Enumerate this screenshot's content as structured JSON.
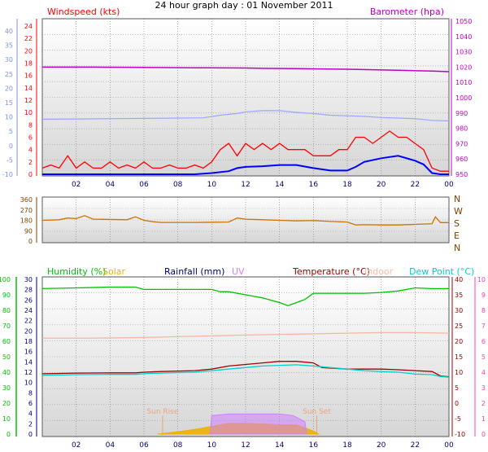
{
  "chart_data": [
    {
      "type": "line",
      "title": "24 hour graph day : 01 November 2011",
      "labels": {
        "windspeed": "Windspeed (kts)",
        "barometer": "Barometer (hpa)"
      },
      "colors": {
        "windspeed": "#ff0000",
        "gust": "#0000ff",
        "barometer": "#c000c0",
        "temperature_scaled": "#9aa6ff"
      },
      "left_axis_outer": {
        "ticks": [
          "40",
          "35",
          "30",
          "25",
          "20",
          "15",
          "10",
          "5",
          "0",
          "-5",
          "-10"
        ]
      },
      "left_axis_inner": {
        "ticks": [
          "24",
          "22",
          "20",
          "18",
          "16",
          "14",
          "12",
          "10",
          "8",
          "6",
          "4",
          "2",
          "0"
        ],
        "ylim": [
          0,
          24
        ]
      },
      "right_axis": {
        "ticks": [
          "1050",
          "1040",
          "1030",
          "1020",
          "1010",
          "1000",
          "990",
          "980",
          "970",
          "960",
          "950"
        ],
        "ylim": [
          950,
          1050
        ]
      },
      "x_ticks": [
        "02",
        "04",
        "06",
        "08",
        "10",
        "12",
        "14",
        "16",
        "18",
        "20",
        "22",
        "00"
      ],
      "series": [
        {
          "key": "barometer",
          "axis": "right",
          "x": [
            0,
            3,
            6,
            9,
            12,
            13,
            15,
            18,
            21,
            23,
            24
          ],
          "values": [
            1020,
            1020,
            1019.8,
            1019.6,
            1019.4,
            1019.2,
            1019,
            1018.6,
            1018,
            1017.4,
            1017
          ]
        },
        {
          "key": "temperature_scaled",
          "axis": "left_outer",
          "x": [
            0,
            2,
            4,
            6,
            8,
            9.5,
            10.5,
            11.5,
            12,
            13,
            14,
            15,
            16,
            17,
            18,
            19,
            20,
            21,
            22,
            23,
            24
          ],
          "values": [
            9.2,
            9.3,
            9.4,
            9.5,
            9.6,
            9.7,
            10.6,
            11.2,
            11.8,
            12.2,
            12.2,
            11.6,
            11.2,
            10.6,
            10.4,
            10.2,
            9.8,
            9.6,
            9.4,
            8.8,
            8.6
          ]
        },
        {
          "key": "windspeed",
          "axis": "left_inner",
          "x": [
            0,
            0.5,
            1,
            1.5,
            2,
            2.5,
            3,
            3.5,
            4,
            4.5,
            5,
            5.5,
            6,
            6.5,
            7,
            7.5,
            8,
            8.5,
            9,
            9.5,
            10,
            10.5,
            11,
            11.5,
            12,
            12.5,
            13,
            13.5,
            14,
            14.5,
            15,
            15.5,
            16,
            16.5,
            17,
            17.5,
            18,
            18.5,
            19,
            19.5,
            20,
            20.5,
            21,
            21.5,
            22,
            22.5,
            23,
            23.5,
            24
          ],
          "values": [
            1,
            1.5,
            1,
            3,
            1,
            2,
            1,
            1,
            2,
            1,
            1.5,
            1,
            2,
            1,
            1,
            1.5,
            1,
            1,
            1.5,
            1,
            2,
            4,
            5,
            3,
            5,
            4,
            5,
            4,
            5,
            4,
            4,
            4,
            3,
            3,
            3,
            4,
            4,
            6,
            6,
            5,
            6,
            7,
            6,
            6,
            5,
            4,
            1,
            0.5,
            0.5
          ]
        },
        {
          "key": "gust",
          "axis": "left_inner",
          "x": [
            0,
            1,
            2,
            3,
            4,
            5,
            6,
            7,
            8,
            9,
            10,
            11,
            11.5,
            12,
            13,
            14,
            15,
            16,
            17,
            18,
            18.5,
            19,
            20,
            21,
            22,
            22.5,
            23,
            23.5,
            24
          ],
          "values": [
            0,
            0,
            0,
            0,
            0,
            0,
            0,
            0,
            0,
            0,
            0.2,
            0.5,
            1,
            1.2,
            1.3,
            1.5,
            1.5,
            1,
            0.6,
            0.6,
            1.2,
            2,
            2.6,
            3,
            2.2,
            1.6,
            0.2,
            0,
            0
          ]
        }
      ]
    },
    {
      "type": "line",
      "left_axis": {
        "ticks": [
          "360",
          "270",
          "180",
          "90",
          "0"
        ],
        "ylim": [
          0,
          360
        ]
      },
      "right_labels": [
        "N",
        "W",
        "S",
        "E",
        "N"
      ],
      "colors": {
        "direction": "#d07000"
      },
      "series": [
        {
          "key": "direction",
          "x": [
            0,
            1,
            1.5,
            2,
            2.5,
            3,
            5,
            5.5,
            6,
            6.5,
            7,
            9,
            11,
            11.5,
            12,
            13,
            14,
            15,
            16,
            17,
            18,
            18.5,
            19,
            20,
            21,
            22,
            23,
            23.2,
            23.5,
            24
          ],
          "values": [
            180,
            185,
            200,
            195,
            220,
            190,
            185,
            210,
            180,
            168,
            162,
            162,
            165,
            200,
            190,
            185,
            180,
            175,
            178,
            170,
            165,
            140,
            142,
            140,
            140,
            145,
            150,
            210,
            160,
            160
          ]
        }
      ]
    },
    {
      "type": "line",
      "labels": {
        "humidity": "Humidity (%)",
        "solar": "Solar",
        "rainfall": "Rainfall (mm)",
        "uv": "UV",
        "temperature": "Temperature (°C)",
        "indoor": "Indoor",
        "dewpoint": "Dew Point (°C)"
      },
      "colors": {
        "humidity": "#00c000",
        "solar": "#f0b000",
        "rainfall": "#000080",
        "uv": "#d080ff",
        "temperature": "#a00000",
        "indoor": "#f4b8a0",
        "dewpoint": "#00d0d0",
        "uv_axis": "#ff40a0"
      },
      "annotations": {
        "sunrise": "Sun Rise",
        "sunset": "Sun Set",
        "sunrise_x": 7.1,
        "sunset_x": 16.2
      },
      "axis_humidity": {
        "ticks": [
          "100",
          "90",
          "80",
          "70",
          "60",
          "50",
          "40",
          "30",
          "20",
          "10",
          "0"
        ],
        "ylim": [
          0,
          100
        ]
      },
      "axis_rain": {
        "ticks": [
          "30",
          "28",
          "26",
          "24",
          "22",
          "20",
          "18",
          "16",
          "14",
          "12",
          "10",
          "8",
          "6",
          "4",
          "2",
          "0"
        ],
        "ylim": [
          0,
          30
        ]
      },
      "axis_temperature": {
        "ticks": [
          "40",
          "35",
          "30",
          "25",
          "20",
          "15",
          "10",
          "5",
          "0",
          "-5",
          "-10"
        ],
        "ylim": [
          -10,
          40
        ]
      },
      "axis_uv": {
        "ticks": [
          "10",
          "9",
          "8",
          "7",
          "6",
          "5",
          "4",
          "3",
          "2",
          "1",
          "0"
        ],
        "ylim": [
          0,
          10
        ]
      },
      "x_ticks": [
        "02",
        "04",
        "06",
        "08",
        "10",
        "12",
        "14",
        "16",
        "18",
        "20",
        "22",
        "00"
      ],
      "series": [
        {
          "key": "humidity",
          "axis": "humidity",
          "x": [
            0,
            2,
            4,
            5.5,
            6,
            8,
            10,
            10.5,
            11,
            11.5,
            12,
            12.5,
            13,
            13.5,
            14,
            14.5,
            15,
            15.5,
            16,
            17,
            18,
            19,
            20,
            21,
            21.5,
            22,
            23,
            24
          ],
          "values": [
            94,
            94.5,
            95,
            95,
            93.5,
            93.5,
            93.5,
            92,
            92,
            91,
            90,
            89,
            88,
            86.5,
            85,
            83,
            85,
            87,
            91,
            91,
            91,
            91,
            91.5,
            92.5,
            93.5,
            94.5,
            94,
            94
          ]
        },
        {
          "key": "indoor",
          "axis": "temperature",
          "x": [
            0,
            3,
            6,
            9,
            12,
            14,
            16,
            18,
            20,
            22,
            24
          ],
          "values": [
            21,
            21,
            21.2,
            21.6,
            22,
            22.2,
            22.4,
            22.6,
            22.8,
            22.8,
            22.6
          ]
        },
        {
          "key": "temperature",
          "axis": "temperature",
          "x": [
            0,
            2,
            4,
            5.5,
            6,
            7,
            9,
            10,
            11,
            12,
            13,
            14,
            15,
            16,
            16.5,
            18,
            20,
            21,
            22,
            23,
            23.5,
            24
          ],
          "values": [
            9.5,
            9.7,
            9.8,
            9.8,
            10,
            10.2,
            10.5,
            11,
            12,
            12.5,
            13,
            13.5,
            13.5,
            13,
            11.5,
            11,
            11,
            10.8,
            10.5,
            10.2,
            8.8,
            8.5
          ]
        },
        {
          "key": "dewpoint",
          "axis": "temperature",
          "x": [
            0,
            2,
            4,
            5.5,
            6,
            7,
            9,
            10,
            11,
            12,
            13,
            14,
            15,
            16,
            17,
            18,
            19,
            20,
            21,
            22,
            23,
            23.5,
            24
          ],
          "values": [
            9,
            9.2,
            9.3,
            9.3,
            9.5,
            9.7,
            10,
            10.5,
            11,
            11.5,
            12,
            12.2,
            12.4,
            12,
            11.5,
            11,
            10.5,
            10.2,
            10,
            9.4,
            9.2,
            8.6,
            8.4
          ]
        },
        {
          "key": "solar",
          "axis": "uv",
          "x": [
            6.8,
            7.2,
            8,
            9,
            10,
            11,
            12,
            13,
            14,
            15,
            15.5,
            16,
            16.3
          ],
          "values": [
            0,
            0.05,
            0.15,
            0.3,
            0.5,
            0.7,
            0.7,
            0.65,
            0.6,
            0.6,
            0.4,
            0.2,
            0
          ]
        },
        {
          "key": "uv",
          "axis": "uv",
          "x": [
            9.9,
            10,
            11,
            12,
            13,
            14,
            14.8,
            15.5,
            15.6
          ],
          "values": [
            0,
            1.2,
            1.3,
            1.3,
            1.3,
            1.3,
            1.2,
            0.8,
            0
          ]
        }
      ]
    }
  ]
}
